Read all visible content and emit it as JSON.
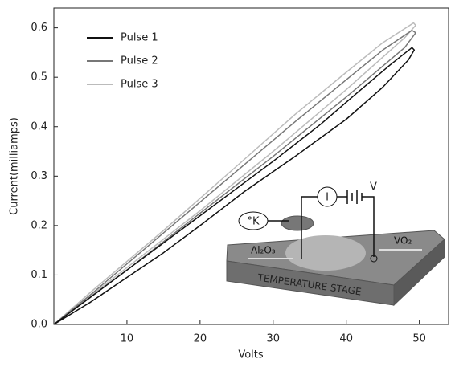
{
  "chart_data": {
    "type": "line",
    "xlabel": "Volts",
    "ylabel": "Current(milliamps)",
    "xlim": [
      0,
      54
    ],
    "xticks": [
      10,
      20,
      30,
      40,
      50
    ],
    "ylim": [
      0,
      0.64
    ],
    "yticks": [
      {
        "value": 0,
        "label": "0.0"
      },
      0.1,
      0.2,
      0.3,
      0.4,
      0.5,
      0.6
    ],
    "legend": "upper left",
    "series": [
      {
        "name": "Pulse 1",
        "color": "#111111",
        "x": [
          0,
          5,
          10,
          15,
          20,
          26,
          33,
          40,
          45,
          48.5,
          49.3,
          49,
          46,
          41.6,
          36.5,
          30,
          20,
          10,
          5,
          0
        ],
        "values": [
          0,
          0.045,
          0.095,
          0.145,
          0.2,
          0.268,
          0.34,
          0.415,
          0.48,
          0.535,
          0.555,
          0.56,
          0.525,
          0.47,
          0.405,
          0.33,
          0.22,
          0.11,
          0.055,
          0
        ]
      },
      {
        "name": "Pulse 2",
        "color": "#777777",
        "x": [
          0,
          10,
          20,
          30,
          40,
          48,
          49.5,
          49,
          45,
          40,
          33,
          25,
          15,
          5,
          0
        ],
        "values": [
          0,
          0.11,
          0.225,
          0.34,
          0.46,
          0.56,
          0.59,
          0.595,
          0.555,
          0.495,
          0.41,
          0.31,
          0.185,
          0.06,
          0
        ]
      },
      {
        "name": "Pulse 3",
        "color": "#bbbbbb",
        "x": [
          0,
          10,
          20,
          30,
          40,
          48,
          49.5,
          49.2,
          45,
          40,
          33,
          25,
          15,
          5,
          0
        ],
        "values": [
          0,
          0.115,
          0.23,
          0.35,
          0.475,
          0.58,
          0.605,
          0.61,
          0.57,
          0.51,
          0.425,
          0.32,
          0.19,
          0.065,
          0
        ]
      }
    ]
  },
  "inset": {
    "temperature": "°K",
    "current": "I",
    "voltage": "V",
    "substrate": "Al₂O₃",
    "film": "VO₂",
    "stage": "TEMPERATURE STAGE"
  }
}
